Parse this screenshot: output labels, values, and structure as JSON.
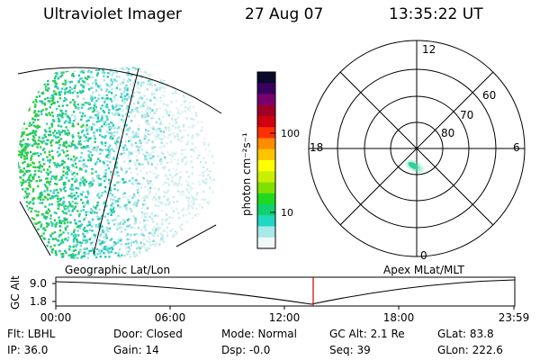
{
  "header": {
    "title": "Ultraviolet Imager",
    "date": "27 Aug 07",
    "time": "13:35:22 UT"
  },
  "colorbar": {
    "unit_label": "photon cm⁻²s⁻¹",
    "ticks": [
      "100",
      "10"
    ],
    "colors": [
      "#0a0a2a",
      "#3a0060",
      "#7a0070",
      "#a00028",
      "#d00010",
      "#ff3000",
      "#ff8c00",
      "#ffc400",
      "#ffff00",
      "#c8f000",
      "#80e000",
      "#20d820",
      "#10d070",
      "#20d8c0",
      "#a8e8e8",
      "#f0f8f8"
    ]
  },
  "polar_plot": {
    "mlt_labels": {
      "top": "12",
      "left": "18",
      "right": "6",
      "bottom": "0"
    },
    "lat_labels": [
      "60",
      "70",
      "80"
    ]
  },
  "panel_labels": {
    "left": "Geographic Lat/Lon",
    "right": "Apex MLat/MLT"
  },
  "altitude_strip": {
    "axis_label": "GC Alt",
    "y_ticks": [
      "9.0",
      "1.8"
    ],
    "time_ticks": [
      "00:00",
      "06:00",
      "12:00",
      "18:00",
      "23:59"
    ],
    "marker_color": "#cc0000"
  },
  "status": {
    "filter": "Flt: LBHL",
    "ip": "IP: 36.0",
    "door": "Door: Closed",
    "gain": "Gain: 14",
    "mode": "Mode: Normal",
    "dsp": "Dsp:   -0.0",
    "gc_alt": "GC Alt: 2.1 Re",
    "seq": "Seq: 39",
    "glat": "GLat:  83.8",
    "glon": "GLon: 222.6"
  }
}
